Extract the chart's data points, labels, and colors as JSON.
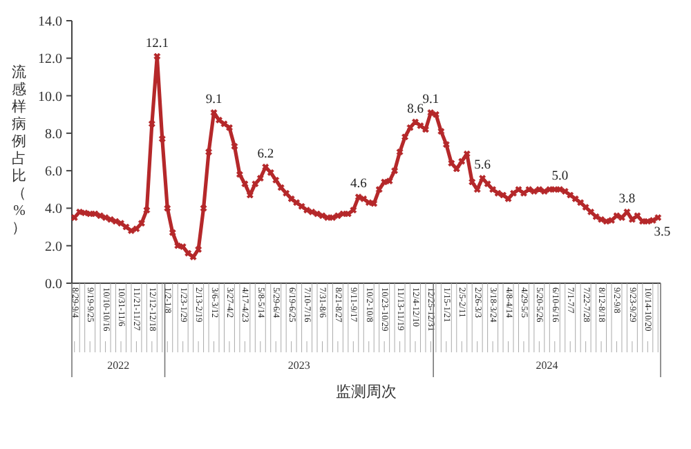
{
  "chart_data": {
    "type": "line",
    "ylabel": "流感样病例占比（%）",
    "xlabel": "监测周次",
    "categories": [
      "8/29-9/4",
      null,
      null,
      "9/19-9/25",
      null,
      null,
      "10/10-10/16",
      null,
      null,
      "10/31-11/6",
      null,
      null,
      "11/21-11/27",
      null,
      null,
      "12/12-12/18",
      null,
      null,
      "1/2-1/8",
      null,
      null,
      "1/23-1/29",
      null,
      null,
      "2/13-2/19",
      null,
      null,
      "3/6-3/12",
      null,
      null,
      "3/27-4/2",
      null,
      null,
      "4/17-4/23",
      null,
      null,
      "5/8-5/14",
      null,
      null,
      "5/29-6/4",
      null,
      null,
      "6/19-6/25",
      null,
      null,
      "7/10-7/16",
      null,
      null,
      "7/31-8/6",
      null,
      null,
      "8/21-8/27",
      null,
      null,
      "9/11-9/17",
      null,
      null,
      "10/2-10/8",
      null,
      null,
      "10/23-10/29",
      null,
      null,
      "11/13-11/19",
      null,
      null,
      "12/4-12/10",
      null,
      null,
      "12/25-12/31",
      null,
      null,
      "1/15-1/21",
      null,
      null,
      "2/5-2/11",
      null,
      null,
      "2/26-3/3",
      null,
      null,
      "3/18-3/24",
      null,
      null,
      "4/8-4/14",
      null,
      null,
      "4/29-5/5",
      null,
      null,
      "5/20-5/26",
      null,
      null,
      "6/10-6/16",
      null,
      null,
      "7/1-7/7",
      null,
      null,
      "7/22-7/28",
      null,
      null,
      "8/12-8/18",
      null,
      null,
      "9/2-9/8",
      null,
      null,
      "9/23-9/29",
      null,
      null,
      "10/14-10/20",
      null,
      null
    ],
    "series": [
      {
        "color": "#b5282a",
        "values": [
          3.5,
          3.8,
          3.75,
          3.7,
          3.7,
          3.6,
          3.5,
          3.4,
          3.3,
          3.2,
          3.0,
          2.8,
          2.9,
          3.2,
          3.9,
          8.5,
          12.1,
          7.7,
          4.0,
          2.7,
          2.0,
          1.95,
          1.6,
          1.4,
          1.8,
          4.0,
          7.0,
          9.1,
          8.7,
          8.5,
          8.3,
          7.3,
          5.8,
          5.3,
          4.7,
          5.3,
          5.6,
          6.2,
          5.9,
          5.5,
          5.1,
          4.8,
          4.5,
          4.3,
          4.1,
          3.9,
          3.8,
          3.7,
          3.6,
          3.5,
          3.5,
          3.6,
          3.7,
          3.7,
          3.9,
          4.6,
          4.5,
          4.3,
          4.25,
          5.0,
          5.4,
          5.45,
          6.0,
          7.0,
          7.8,
          8.3,
          8.6,
          8.4,
          8.2,
          9.1,
          9.0,
          8.1,
          7.4,
          6.4,
          6.1,
          6.5,
          6.9,
          5.4,
          5.0,
          5.6,
          5.3,
          5.0,
          4.8,
          4.7,
          4.5,
          4.8,
          5.0,
          4.8,
          5.0,
          4.9,
          5.0,
          4.9,
          5.0,
          5.0,
          5.0,
          4.9,
          4.7,
          4.5,
          4.3,
          4.05,
          3.8,
          3.55,
          3.4,
          3.3,
          3.35,
          3.6,
          3.5,
          3.8,
          3.4,
          3.6,
          3.3,
          3.3,
          3.35,
          3.5
        ],
        "value_labels": [
          null,
          null,
          null,
          null,
          null,
          null,
          null,
          null,
          null,
          null,
          null,
          null,
          null,
          null,
          null,
          null,
          "12.1",
          null,
          null,
          null,
          null,
          null,
          null,
          null,
          null,
          null,
          null,
          "9.1",
          null,
          null,
          null,
          null,
          null,
          null,
          null,
          null,
          null,
          "6.2",
          null,
          null,
          null,
          null,
          null,
          null,
          null,
          null,
          null,
          null,
          null,
          null,
          null,
          null,
          null,
          null,
          null,
          "4.6",
          null,
          null,
          null,
          null,
          null,
          null,
          null,
          null,
          null,
          null,
          "8.6",
          null,
          null,
          "9.1",
          null,
          null,
          null,
          null,
          null,
          null,
          null,
          null,
          null,
          "5.6",
          null,
          null,
          null,
          null,
          null,
          null,
          null,
          null,
          null,
          null,
          null,
          null,
          null,
          null,
          "5.0",
          null,
          null,
          null,
          null,
          null,
          null,
          null,
          null,
          null,
          null,
          null,
          null,
          "3.8",
          null,
          null,
          null,
          null,
          null,
          "3.5"
        ]
      }
    ],
    "ylim": [
      0,
      14
    ],
    "yticks": [
      {
        "value": 0,
        "label": "0.0"
      },
      {
        "value": 2,
        "label": "2.0"
      },
      {
        "value": 4,
        "label": "4.0"
      },
      {
        "value": 6,
        "label": "6.0"
      },
      {
        "value": 8,
        "label": "8.0"
      },
      {
        "value": 10,
        "label": "10.0"
      },
      {
        "value": 12,
        "label": "12.0"
      },
      {
        "value": 14,
        "label": "14.0"
      }
    ],
    "marker": "cross",
    "line_style": "solid",
    "grid": false,
    "annotations": [
      "2022",
      "2023",
      "2024"
    ]
  }
}
